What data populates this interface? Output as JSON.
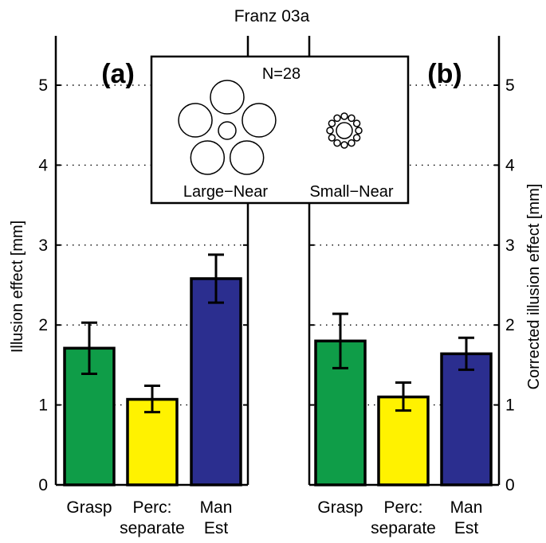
{
  "title": "Franz 03a",
  "colors": {
    "Grasp": "#0f9d48",
    "Perc: separate": "#fff200",
    "Man Est": "#2b2e8f"
  },
  "chart_data": [
    {
      "panel": "(a)",
      "type": "bar",
      "ylabel": "Illusion effect [mm]",
      "ylim": [
        0,
        5.5
      ],
      "yticks": [
        0,
        1,
        2,
        3,
        4,
        5
      ],
      "grid": "horizontal dotted",
      "categories": [
        [
          "Grasp"
        ],
        [
          "Perc:",
          "separate"
        ],
        [
          "Man",
          "Est"
        ]
      ],
      "values": [
        1.71,
        1.07,
        2.58
      ],
      "error_low": [
        1.39,
        0.91,
        2.28
      ],
      "error_high": [
        2.03,
        1.24,
        2.88
      ]
    },
    {
      "panel": "(b)",
      "type": "bar",
      "ylabel": "Corrected illusion effect [mm]",
      "ylim": [
        0,
        5.5
      ],
      "yticks": [
        0,
        1,
        2,
        3,
        4,
        5
      ],
      "grid": "horizontal dotted",
      "categories": [
        [
          "Grasp"
        ],
        [
          "Perc:",
          "separate"
        ],
        [
          "Man",
          "Est"
        ]
      ],
      "values": [
        1.8,
        1.1,
        1.64
      ],
      "error_low": [
        1.46,
        0.93,
        1.44
      ],
      "error_high": [
        2.14,
        1.28,
        1.84
      ]
    }
  ],
  "inset": {
    "n_label": "N=28",
    "left_label": "Large−Near",
    "right_label": "Small−Near"
  }
}
